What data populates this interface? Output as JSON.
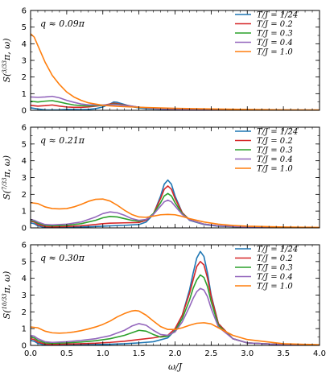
{
  "chart_data": [
    {
      "type": "line",
      "annotation": "q ≈ 0.09π",
      "ylabel": "S(3/33 π, ω)",
      "xlabel": "",
      "xlim": [
        0.0,
        4.0
      ],
      "ylim": [
        0,
        6
      ],
      "x_ticks": [
        "0.0",
        "0.5",
        "1.0",
        "1.5",
        "2.0",
        "2.5",
        "3.0",
        "3.5",
        "4.0"
      ],
      "y_ticks": [
        "0",
        "1",
        "2",
        "3",
        "4",
        "5",
        "6"
      ],
      "legend_position": "top-right",
      "series": [
        {
          "name": "T/J = 1/24",
          "color": "#1f77b4",
          "x": [
            0,
            0.1,
            0.2,
            0.3,
            0.4,
            0.5,
            0.6,
            0.7,
            0.8,
            0.9,
            1.0,
            1.1,
            1.15,
            1.2,
            1.3,
            1.4,
            1.5,
            1.6,
            1.8,
            2.0,
            2.5,
            3.0,
            3.5,
            4.0
          ],
          "y": [
            0.15,
            0.08,
            0.03,
            0.02,
            0.03,
            0.05,
            0.05,
            0.04,
            0.05,
            0.1,
            0.2,
            0.38,
            0.5,
            0.48,
            0.35,
            0.22,
            0.15,
            0.1,
            0.07,
            0.05,
            0.03,
            0.02,
            0.01,
            0.01
          ]
        },
        {
          "name": "T/J = 0.2",
          "color": "#d62728",
          "x": [
            0,
            0.1,
            0.2,
            0.3,
            0.4,
            0.5,
            0.6,
            0.7,
            0.8,
            0.9,
            1.0,
            1.1,
            1.15,
            1.2,
            1.3,
            1.4,
            1.5,
            1.6,
            1.8,
            2.0,
            2.5,
            3.0,
            3.5,
            4.0
          ],
          "y": [
            0.3,
            0.25,
            0.28,
            0.32,
            0.25,
            0.2,
            0.18,
            0.18,
            0.2,
            0.25,
            0.3,
            0.38,
            0.42,
            0.4,
            0.32,
            0.25,
            0.18,
            0.14,
            0.09,
            0.06,
            0.04,
            0.02,
            0.01,
            0.01
          ]
        },
        {
          "name": "T/J = 0.3",
          "color": "#2ca02c",
          "x": [
            0,
            0.1,
            0.2,
            0.3,
            0.4,
            0.5,
            0.6,
            0.7,
            0.8,
            0.9,
            1.0,
            1.1,
            1.15,
            1.2,
            1.3,
            1.4,
            1.5,
            1.6,
            1.8,
            2.0,
            2.5,
            3.0,
            3.5,
            4.0
          ],
          "y": [
            0.55,
            0.5,
            0.55,
            0.58,
            0.5,
            0.4,
            0.32,
            0.28,
            0.26,
            0.28,
            0.3,
            0.35,
            0.37,
            0.36,
            0.3,
            0.24,
            0.18,
            0.14,
            0.1,
            0.07,
            0.04,
            0.02,
            0.01,
            0.01
          ]
        },
        {
          "name": "T/J = 0.4",
          "color": "#9467bd",
          "x": [
            0,
            0.1,
            0.2,
            0.3,
            0.4,
            0.5,
            0.6,
            0.7,
            0.8,
            0.9,
            1.0,
            1.1,
            1.15,
            1.2,
            1.3,
            1.4,
            1.5,
            1.6,
            1.8,
            2.0,
            2.5,
            3.0,
            3.5,
            4.0
          ],
          "y": [
            0.8,
            0.78,
            0.8,
            0.84,
            0.75,
            0.6,
            0.48,
            0.38,
            0.33,
            0.32,
            0.32,
            0.33,
            0.34,
            0.33,
            0.29,
            0.24,
            0.19,
            0.15,
            0.1,
            0.07,
            0.04,
            0.02,
            0.01,
            0.01
          ]
        },
        {
          "name": "T/J = 1.0",
          "color": "#ff7f0e",
          "x": [
            0,
            0.05,
            0.1,
            0.2,
            0.3,
            0.4,
            0.5,
            0.6,
            0.7,
            0.8,
            1.0,
            1.2,
            1.4,
            1.6,
            1.8,
            2.0,
            2.5,
            3.0,
            3.5,
            4.0
          ],
          "y": [
            4.6,
            4.4,
            3.9,
            2.9,
            2.1,
            1.55,
            1.1,
            0.8,
            0.6,
            0.45,
            0.3,
            0.24,
            0.2,
            0.17,
            0.14,
            0.12,
            0.08,
            0.05,
            0.03,
            0.02
          ]
        }
      ]
    },
    {
      "type": "line",
      "annotation": "q ≈ 0.21π",
      "ylabel": "S(7/33 π, ω)",
      "xlabel": "",
      "xlim": [
        0.0,
        4.0
      ],
      "ylim": [
        0,
        6
      ],
      "x_ticks": [
        "0.0",
        "0.5",
        "1.0",
        "1.5",
        "2.0",
        "2.5",
        "3.0",
        "3.5",
        "4.0"
      ],
      "y_ticks": [
        "0",
        "1",
        "2",
        "3",
        "4",
        "5",
        "6"
      ],
      "legend_position": "top-right",
      "series": [
        {
          "name": "T/J = 1/24",
          "color": "#1f77b4",
          "x": [
            0,
            0.05,
            0.1,
            0.2,
            0.3,
            0.5,
            0.7,
            0.9,
            1.0,
            1.1,
            1.3,
            1.5,
            1.6,
            1.7,
            1.8,
            1.85,
            1.9,
            1.95,
            2.0,
            2.1,
            2.2,
            2.4,
            2.6,
            3.0,
            3.5,
            4.0
          ],
          "y": [
            0.3,
            0.25,
            0.12,
            0.03,
            0.02,
            0.03,
            0.05,
            0.08,
            0.1,
            0.12,
            0.15,
            0.2,
            0.35,
            0.8,
            1.9,
            2.6,
            2.85,
            2.6,
            1.9,
            0.9,
            0.45,
            0.2,
            0.1,
            0.05,
            0.02,
            0.01
          ]
        },
        {
          "name": "T/J = 0.2",
          "color": "#d62728",
          "x": [
            0,
            0.05,
            0.1,
            0.2,
            0.3,
            0.5,
            0.7,
            0.9,
            1.0,
            1.1,
            1.3,
            1.5,
            1.6,
            1.7,
            1.8,
            1.85,
            1.9,
            1.95,
            2.0,
            2.1,
            2.2,
            2.4,
            2.6,
            3.0,
            3.5,
            4.0
          ],
          "y": [
            0.4,
            0.35,
            0.2,
            0.08,
            0.06,
            0.08,
            0.12,
            0.2,
            0.25,
            0.28,
            0.3,
            0.32,
            0.45,
            0.85,
            1.75,
            2.3,
            2.5,
            2.3,
            1.75,
            0.9,
            0.48,
            0.22,
            0.12,
            0.05,
            0.02,
            0.01
          ]
        },
        {
          "name": "T/J = 0.3",
          "color": "#2ca02c",
          "x": [
            0,
            0.05,
            0.1,
            0.2,
            0.3,
            0.5,
            0.7,
            0.9,
            1.0,
            1.1,
            1.2,
            1.3,
            1.4,
            1.5,
            1.6,
            1.7,
            1.8,
            1.85,
            1.9,
            1.95,
            2.0,
            2.1,
            2.2,
            2.4,
            2.6,
            3.0,
            3.5,
            4.0
          ],
          "y": [
            0.45,
            0.4,
            0.28,
            0.15,
            0.12,
            0.15,
            0.25,
            0.45,
            0.6,
            0.68,
            0.65,
            0.55,
            0.45,
            0.4,
            0.5,
            0.85,
            1.5,
            1.9,
            2.05,
            1.9,
            1.5,
            0.85,
            0.48,
            0.22,
            0.12,
            0.05,
            0.02,
            0.01
          ]
        },
        {
          "name": "T/J = 0.4",
          "color": "#9467bd",
          "x": [
            0,
            0.05,
            0.1,
            0.2,
            0.3,
            0.5,
            0.7,
            0.9,
            1.0,
            1.1,
            1.2,
            1.3,
            1.4,
            1.5,
            1.6,
            1.7,
            1.8,
            1.85,
            1.9,
            1.95,
            2.0,
            2.1,
            2.2,
            2.4,
            2.6,
            3.0,
            3.5,
            4.0
          ],
          "y": [
            0.5,
            0.45,
            0.35,
            0.2,
            0.18,
            0.22,
            0.35,
            0.65,
            0.85,
            0.95,
            0.9,
            0.75,
            0.55,
            0.45,
            0.5,
            0.8,
            1.3,
            1.55,
            1.65,
            1.55,
            1.3,
            0.8,
            0.48,
            0.22,
            0.12,
            0.05,
            0.02,
            0.01
          ]
        },
        {
          "name": "T/J = 1.0",
          "color": "#ff7f0e",
          "x": [
            0,
            0.1,
            0.2,
            0.3,
            0.4,
            0.5,
            0.6,
            0.7,
            0.8,
            0.9,
            1.0,
            1.1,
            1.2,
            1.3,
            1.4,
            1.5,
            1.6,
            1.7,
            1.8,
            1.9,
            2.0,
            2.1,
            2.2,
            2.4,
            2.6,
            2.8,
            3.0,
            3.5,
            4.0
          ],
          "y": [
            1.5,
            1.45,
            1.25,
            1.15,
            1.13,
            1.15,
            1.25,
            1.4,
            1.58,
            1.7,
            1.72,
            1.6,
            1.35,
            1.05,
            0.8,
            0.65,
            0.63,
            0.7,
            0.78,
            0.8,
            0.78,
            0.68,
            0.55,
            0.35,
            0.22,
            0.14,
            0.1,
            0.05,
            0.03
          ]
        }
      ]
    },
    {
      "type": "line",
      "annotation": "q ≈ 0.30π",
      "ylabel": "S(10/33 π, ω)",
      "xlabel": "ω/J",
      "xlim": [
        0.0,
        4.0
      ],
      "ylim": [
        0,
        6
      ],
      "x_ticks": [
        "0.0",
        "0.5",
        "1.0",
        "1.5",
        "2.0",
        "2.5",
        "3.0",
        "3.5",
        "4.0"
      ],
      "y_ticks": [
        "0",
        "1",
        "2",
        "3",
        "4",
        "5",
        "6"
      ],
      "legend_position": "top-right",
      "series": [
        {
          "name": "T/J = 1/24",
          "color": "#1f77b4",
          "x": [
            0,
            0.05,
            0.1,
            0.2,
            0.3,
            0.5,
            0.7,
            0.9,
            1.1,
            1.3,
            1.5,
            1.7,
            1.9,
            2.0,
            2.1,
            2.2,
            2.25,
            2.3,
            2.35,
            2.4,
            2.45,
            2.5,
            2.6,
            2.8,
            3.0,
            3.5,
            4.0
          ],
          "y": [
            0.3,
            0.25,
            0.12,
            0.03,
            0.02,
            0.03,
            0.04,
            0.05,
            0.07,
            0.1,
            0.15,
            0.22,
            0.45,
            0.9,
            1.8,
            3.3,
            4.3,
            5.2,
            5.6,
            5.3,
            4.3,
            3.0,
            1.3,
            0.4,
            0.15,
            0.04,
            0.01
          ]
        },
        {
          "name": "T/J = 0.2",
          "color": "#d62728",
          "x": [
            0,
            0.05,
            0.1,
            0.2,
            0.3,
            0.5,
            0.7,
            0.9,
            1.1,
            1.3,
            1.5,
            1.7,
            1.9,
            2.0,
            2.1,
            2.2,
            2.25,
            2.3,
            2.35,
            2.4,
            2.45,
            2.5,
            2.6,
            2.8,
            3.0,
            3.5,
            4.0
          ],
          "y": [
            0.4,
            0.35,
            0.2,
            0.08,
            0.06,
            0.08,
            0.1,
            0.13,
            0.18,
            0.25,
            0.35,
            0.45,
            0.6,
            1.0,
            1.8,
            3.1,
            3.9,
            4.7,
            5.0,
            4.8,
            4.0,
            2.9,
            1.3,
            0.4,
            0.15,
            0.04,
            0.01
          ]
        },
        {
          "name": "T/J = 0.3",
          "color": "#2ca02c",
          "x": [
            0,
            0.05,
            0.1,
            0.2,
            0.3,
            0.5,
            0.7,
            0.9,
            1.1,
            1.3,
            1.4,
            1.5,
            1.6,
            1.7,
            1.8,
            1.9,
            2.0,
            2.1,
            2.2,
            2.25,
            2.3,
            2.35,
            2.4,
            2.45,
            2.5,
            2.6,
            2.8,
            3.0,
            3.5,
            4.0
          ],
          "y": [
            0.5,
            0.45,
            0.3,
            0.15,
            0.12,
            0.15,
            0.2,
            0.28,
            0.4,
            0.6,
            0.75,
            0.9,
            0.85,
            0.65,
            0.5,
            0.55,
            0.85,
            1.6,
            2.7,
            3.4,
            3.9,
            4.2,
            4.05,
            3.5,
            2.6,
            1.2,
            0.4,
            0.15,
            0.04,
            0.01
          ]
        },
        {
          "name": "T/J = 0.4",
          "color": "#9467bd",
          "x": [
            0,
            0.05,
            0.1,
            0.2,
            0.3,
            0.5,
            0.7,
            0.9,
            1.1,
            1.3,
            1.4,
            1.5,
            1.6,
            1.7,
            1.8,
            1.9,
            2.0,
            2.1,
            2.2,
            2.25,
            2.3,
            2.35,
            2.4,
            2.45,
            2.5,
            2.6,
            2.8,
            3.0,
            3.5,
            4.0
          ],
          "y": [
            0.6,
            0.55,
            0.4,
            0.22,
            0.18,
            0.22,
            0.3,
            0.4,
            0.58,
            0.9,
            1.15,
            1.3,
            1.2,
            0.9,
            0.65,
            0.6,
            0.8,
            1.4,
            2.3,
            2.8,
            3.2,
            3.4,
            3.3,
            2.9,
            2.2,
            1.1,
            0.4,
            0.15,
            0.04,
            0.01
          ]
        },
        {
          "name": "T/J = 1.0",
          "color": "#ff7f0e",
          "x": [
            0,
            0.1,
            0.2,
            0.3,
            0.4,
            0.5,
            0.6,
            0.7,
            0.8,
            0.9,
            1.0,
            1.1,
            1.2,
            1.3,
            1.4,
            1.45,
            1.5,
            1.6,
            1.7,
            1.8,
            1.9,
            2.0,
            2.1,
            2.2,
            2.3,
            2.4,
            2.5,
            2.6,
            2.8,
            3.0,
            3.5,
            4.0
          ],
          "y": [
            1.1,
            1.05,
            0.85,
            0.75,
            0.73,
            0.75,
            0.8,
            0.88,
            0.98,
            1.1,
            1.25,
            1.45,
            1.7,
            1.9,
            2.05,
            2.08,
            2.05,
            1.8,
            1.45,
            1.12,
            0.95,
            0.95,
            1.05,
            1.2,
            1.32,
            1.35,
            1.28,
            1.05,
            0.6,
            0.35,
            0.1,
            0.04
          ]
        }
      ]
    }
  ]
}
